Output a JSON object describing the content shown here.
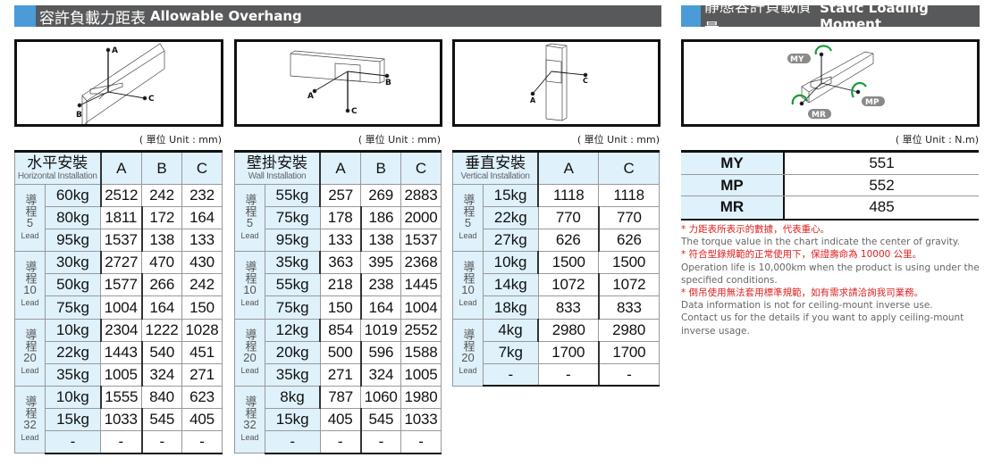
{
  "overhang": {
    "title_zh": "容許負載力距表",
    "title_en": "Allowable Overhang",
    "unit": "( 單位 Unit : mm)",
    "diagram_labels": [
      "A",
      "B",
      "C"
    ],
    "tables": [
      {
        "header_zh": "水平安裝",
        "header_en": "Horizontal Installation",
        "columns": [
          "A",
          "B",
          "C"
        ],
        "groups": [
          {
            "lead_zh": "導程",
            "lead_num": "5",
            "lead_en": "Lead",
            "rows": [
              [
                "60kg",
                "2512",
                "242",
                "232"
              ],
              [
                "80kg",
                "1811",
                "172",
                "164"
              ],
              [
                "95kg",
                "1537",
                "138",
                "133"
              ]
            ]
          },
          {
            "lead_zh": "導程",
            "lead_num": "10",
            "lead_en": "Lead",
            "rows": [
              [
                "30kg",
                "2727",
                "470",
                "430"
              ],
              [
                "50kg",
                "1577",
                "266",
                "242"
              ],
              [
                "75kg",
                "1004",
                "164",
                "150"
              ]
            ]
          },
          {
            "lead_zh": "導程",
            "lead_num": "20",
            "lead_en": "Lead",
            "rows": [
              [
                "10kg",
                "2304",
                "1222",
                "1028"
              ],
              [
                "22kg",
                "1443",
                "540",
                "451"
              ],
              [
                "35kg",
                "1005",
                "324",
                "271"
              ]
            ]
          },
          {
            "lead_zh": "導程",
            "lead_num": "32",
            "lead_en": "Lead",
            "rows": [
              [
                "10kg",
                "1555",
                "840",
                "623"
              ],
              [
                "15kg",
                "1033",
                "545",
                "405"
              ],
              [
                "-",
                "-",
                "-",
                "-"
              ]
            ]
          }
        ]
      },
      {
        "header_zh": "壁掛安裝",
        "header_en": "Wall Installation",
        "columns": [
          "A",
          "B",
          "C"
        ],
        "groups": [
          {
            "lead_zh": "導程",
            "lead_num": "5",
            "lead_en": "Lead",
            "rows": [
              [
                "55kg",
                "257",
                "269",
                "2883"
              ],
              [
                "75kg",
                "178",
                "186",
                "2000"
              ],
              [
                "95kg",
                "133",
                "138",
                "1537"
              ]
            ]
          },
          {
            "lead_zh": "導程",
            "lead_num": "10",
            "lead_en": "Lead",
            "rows": [
              [
                "35kg",
                "363",
                "395",
                "2368"
              ],
              [
                "55kg",
                "218",
                "238",
                "1445"
              ],
              [
                "75kg",
                "150",
                "164",
                "1004"
              ]
            ]
          },
          {
            "lead_zh": "導程",
            "lead_num": "20",
            "lead_en": "Lead",
            "rows": [
              [
                "12kg",
                "854",
                "1019",
                "2552"
              ],
              [
                "20kg",
                "500",
                "596",
                "1588"
              ],
              [
                "35kg",
                "271",
                "324",
                "1005"
              ]
            ]
          },
          {
            "lead_zh": "導程",
            "lead_num": "32",
            "lead_en": "Lead",
            "rows": [
              [
                "8kg",
                "787",
                "1060",
                "1980"
              ],
              [
                "15kg",
                "405",
                "545",
                "1033"
              ],
              [
                "-",
                "-",
                "-",
                "-"
              ]
            ]
          }
        ]
      },
      {
        "header_zh": "垂直安裝",
        "header_en": "Vertical Installation",
        "columns": [
          "A",
          "C"
        ],
        "groups": [
          {
            "lead_zh": "導程",
            "lead_num": "5",
            "lead_en": "Lead",
            "rows": [
              [
                "15kg",
                "1118",
                "1118"
              ],
              [
                "22kg",
                "770",
                "770"
              ],
              [
                "27kg",
                "626",
                "626"
              ]
            ]
          },
          {
            "lead_zh": "導程",
            "lead_num": "10",
            "lead_en": "Lead",
            "rows": [
              [
                "10kg",
                "1500",
                "1500"
              ],
              [
                "14kg",
                "1072",
                "1072"
              ],
              [
                "18kg",
                "833",
                "833"
              ]
            ]
          },
          {
            "lead_zh": "導程",
            "lead_num": "20",
            "lead_en": "Lead",
            "rows": [
              [
                "4kg",
                "2980",
                "2980"
              ],
              [
                "7kg",
                "1700",
                "1700"
              ],
              [
                "-",
                "-",
                "-"
              ]
            ]
          }
        ]
      }
    ]
  },
  "moment": {
    "title_zh": "靜態容許負載慣量",
    "title_en": "Static Loading Moment",
    "unit": "( 單位 Unit : N.m)",
    "diagram_labels": [
      "MY",
      "MP",
      "MR"
    ],
    "rows": [
      {
        "key": "MY",
        "value": "551"
      },
      {
        "key": "MP",
        "value": "552"
      },
      {
        "key": "MR",
        "value": "485"
      }
    ],
    "notes": [
      {
        "text": "* 力距表所表示的數據，代表重心。",
        "red": true
      },
      {
        "text": "The torque value in the chart indicate the center of gravity.",
        "red": false
      },
      {
        "text": "* 符合型錄規範的正常使用下，保證壽命為 10000 公里。",
        "red": true
      },
      {
        "text": "Operation life is 10,000km when the product is using under the specified conditions.",
        "red": false
      },
      {
        "text": "* 倒吊使用無法套用標準規範，如有需求請洽詢我司業務。",
        "red": true
      },
      {
        "text": "Data information is not for ceiling-mount inverse use.",
        "red": false
      },
      {
        "text": "Contact us for the details if you want to apply ceiling-mount inverse usage.",
        "red": false
      }
    ],
    "colors": {
      "arrow": "#1a9a3a",
      "badge": "#8a8a8a"
    }
  }
}
